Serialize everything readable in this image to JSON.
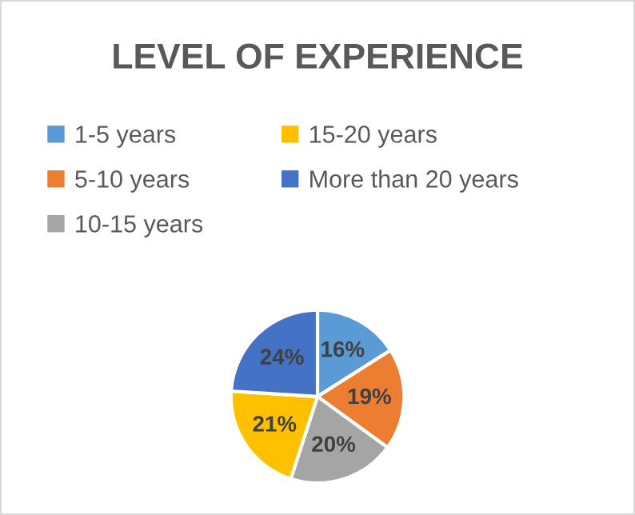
{
  "chart_data": {
    "type": "pie",
    "title": "LEVEL OF EXPERIENCE",
    "categories": [
      "1-5 years",
      "5-10 years",
      "10-15 years",
      "15-20 years",
      "More than 20 years"
    ],
    "values": [
      16,
      19,
      20,
      21,
      24
    ],
    "colors": [
      "#5b9bd5",
      "#ed7d31",
      "#a5a5a5",
      "#ffc000",
      "#4472c4"
    ],
    "value_labels": [
      "16%",
      "19%",
      "20%",
      "21%",
      "24%"
    ],
    "legend": "top"
  }
}
